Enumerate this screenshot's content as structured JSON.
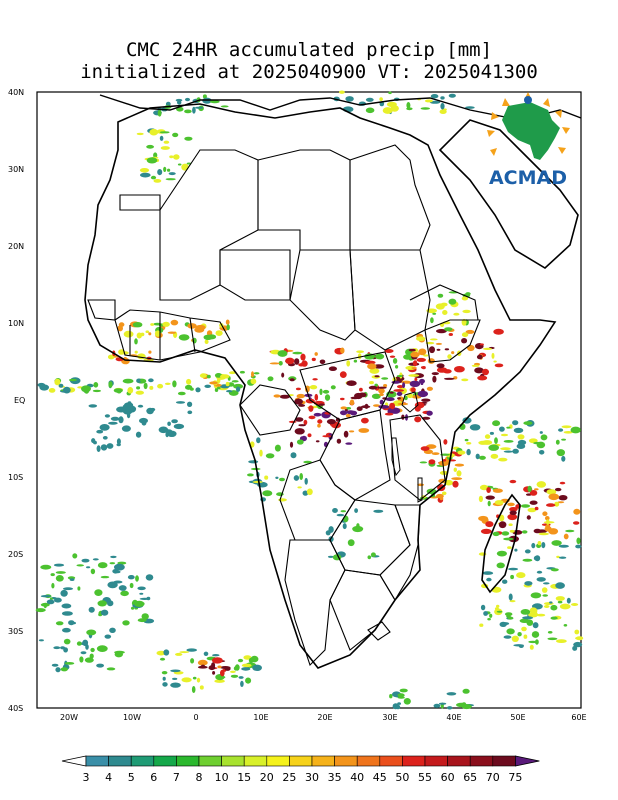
{
  "title": {
    "line1": "CMC 24HR accumulated precip [mm]",
    "line2": "initialized at 2025040900 VT: 2025041300"
  },
  "logo": {
    "text": "ACMAD"
  },
  "lat_labels": [
    "40N",
    "30N",
    "20N",
    "10N",
    "EQ",
    "10S",
    "20S",
    "30S",
    "40S"
  ],
  "lon_labels": [
    "20W",
    "10W",
    "0",
    "10E",
    "20E",
    "30E",
    "40E",
    "50E",
    "60E"
  ],
  "colorbar": {
    "values": [
      "3",
      "4",
      "5",
      "6",
      "7",
      "8",
      "10",
      "15",
      "20",
      "25",
      "30",
      "35",
      "40",
      "45",
      "50",
      "55",
      "60",
      "65",
      "70",
      "75"
    ],
    "colors": [
      "#3a8fa8",
      "#2f8a8f",
      "#1f9b75",
      "#15a84a",
      "#2bb82e",
      "#6ecf30",
      "#a8e22f",
      "#d8f02a",
      "#f5f21b",
      "#f6d21a",
      "#f5b21a",
      "#f3941b",
      "#ef741c",
      "#ea4f1c",
      "#dc221c",
      "#c41a1c",
      "#a8141c",
      "#8a0f1c",
      "#6c0b1e",
      "#5a1a7a"
    ]
  },
  "precip_colors": {
    "light": "#2f8a8f",
    "green": "#4cc22f",
    "yellow": "#e8f02a",
    "orange": "#f3941b",
    "red": "#dc221c",
    "dark": "#6c0b1e",
    "purple": "#5a1a7a"
  }
}
